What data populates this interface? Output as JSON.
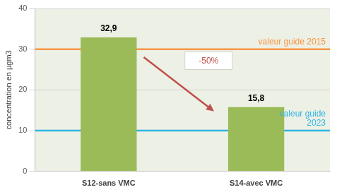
{
  "chart_data": {
    "type": "bar",
    "categories": [
      "S12-sans VMC",
      "S14-avec VMC"
    ],
    "values": [
      32.9,
      15.8
    ],
    "value_labels": [
      "32,9",
      "15,8"
    ],
    "color": "#9bbb59",
    "data_labels": true,
    "y_label": "concentration en µgm3",
    "ylim": [
      0,
      40
    ],
    "yticks": [
      0,
      10,
      20,
      30,
      40
    ],
    "grid": true,
    "reference_lines": [
      {
        "label": "valeur guide 2015",
        "value": 30,
        "color": "#f79646"
      },
      {
        "label": "valeur guide 2023",
        "value": 10,
        "color": "#2fb5e8"
      }
    ],
    "annotation": "-50%"
  }
}
